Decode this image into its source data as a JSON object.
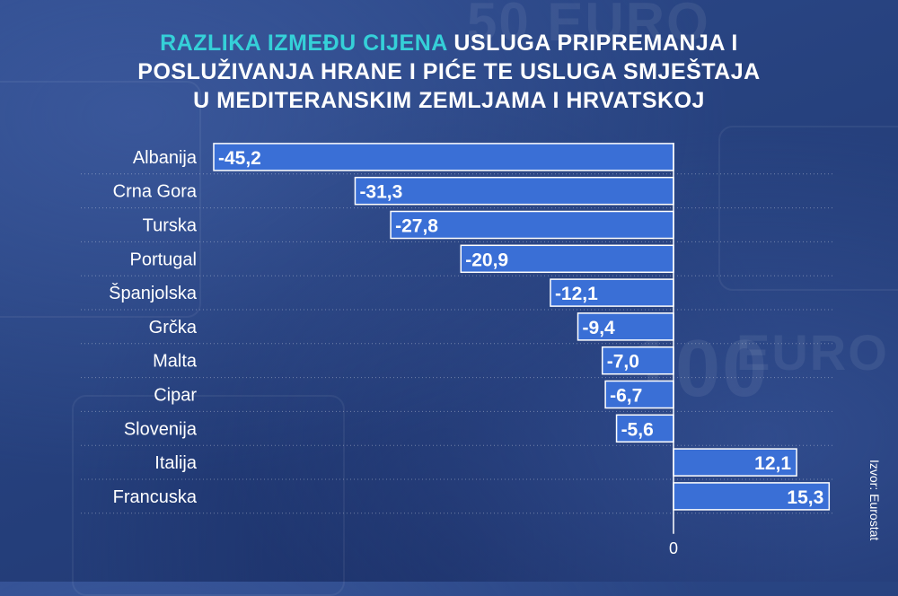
{
  "title": {
    "highlight": "RAZLIKA IZMEĐU CIJENA",
    "line1_rest": "USLUGA PRIPREMANJA I",
    "line2": "POSLUŽIVANJA HRANE I PIĆE TE USLUGA SMJEŠTAJA",
    "line3": "U MEDITERANSKIM ZEMLJAMA I HRVATSKOJ"
  },
  "source": "Izvor: Eurostat",
  "colors": {
    "bar_fill": "#3a6fd6",
    "bar_stroke": "#ffffff",
    "highlight": "#35d0d8",
    "background": "#27427f"
  },
  "chart_data": {
    "type": "bar",
    "orientation": "horizontal",
    "categories": [
      "Albanija",
      "Crna Gora",
      "Turska",
      "Portugal",
      "Španjolska",
      "Grčka",
      "Malta",
      "Cipar",
      "Slovenija",
      "Italija",
      "Francuska"
    ],
    "values": [
      -45.2,
      -31.3,
      -27.8,
      -20.9,
      -12.1,
      -9.4,
      -7.0,
      -6.7,
      -5.6,
      12.1,
      15.3
    ],
    "value_labels": [
      "-45,2",
      "-31,3",
      "-27,8",
      "-20,9",
      "-12,1",
      "-9,4",
      "-7,0",
      "-6,7",
      "-5,6",
      "12,1",
      "15,3"
    ],
    "zero_tick_label": "0",
    "xlim": [
      -45.2,
      15.3
    ],
    "grid": "dotted horizontal separators",
    "legend": "none"
  }
}
